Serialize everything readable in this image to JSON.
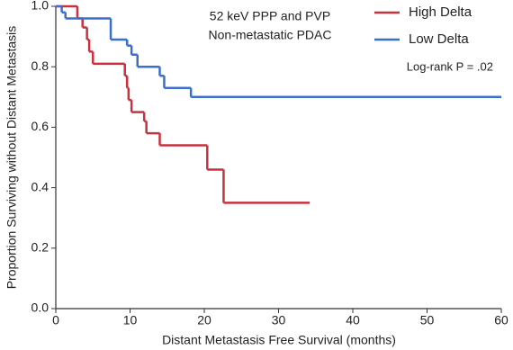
{
  "chart_data": {
    "type": "step",
    "title_lines": [
      "52 keV PPP and PVP",
      "Non-metastatic PDAC"
    ],
    "annotation": "Log-rank P = .02",
    "xlabel": "Distant Metastasis Free Survival (months)",
    "ylabel": "Proportion Surviving without Distant Metastasis",
    "xlim": [
      0,
      60
    ],
    "ylim": [
      0,
      1
    ],
    "xticks": [
      0,
      10,
      20,
      30,
      40,
      50,
      60
    ],
    "yticks": [
      {
        "value": 0,
        "label": "0.0"
      },
      {
        "value": 0.2,
        "label": "0.2"
      },
      {
        "value": 0.4,
        "label": "0.4"
      },
      {
        "value": 0.6,
        "label": "0.6"
      },
      {
        "value": 0.8,
        "label": "0.8"
      },
      {
        "value": 1,
        "label": "1.0"
      }
    ],
    "legend": "top-right",
    "series": [
      {
        "name": "High Delta",
        "color": "#c8323e",
        "x": [
          0,
          2.9,
          3.6,
          4.2,
          4.5,
          5.0,
          9.3,
          9.6,
          9.8,
          10.2,
          11.9,
          12.2,
          14.0,
          20.4,
          22.6,
          34.2
        ],
        "values": [
          1.0,
          0.96,
          0.93,
          0.89,
          0.85,
          0.81,
          0.77,
          0.73,
          0.69,
          0.65,
          0.62,
          0.58,
          0.54,
          0.46,
          0.35,
          0.35
        ]
      },
      {
        "name": "Low Delta",
        "color": "#3a6fd0",
        "x": [
          0,
          0.8,
          1.3,
          7.4,
          9.6,
          10.2,
          11.0,
          14.0,
          14.6,
          18.2,
          60
        ],
        "values": [
          1.0,
          0.98,
          0.96,
          0.89,
          0.87,
          0.84,
          0.8,
          0.77,
          0.73,
          0.7,
          0.7
        ]
      }
    ]
  }
}
